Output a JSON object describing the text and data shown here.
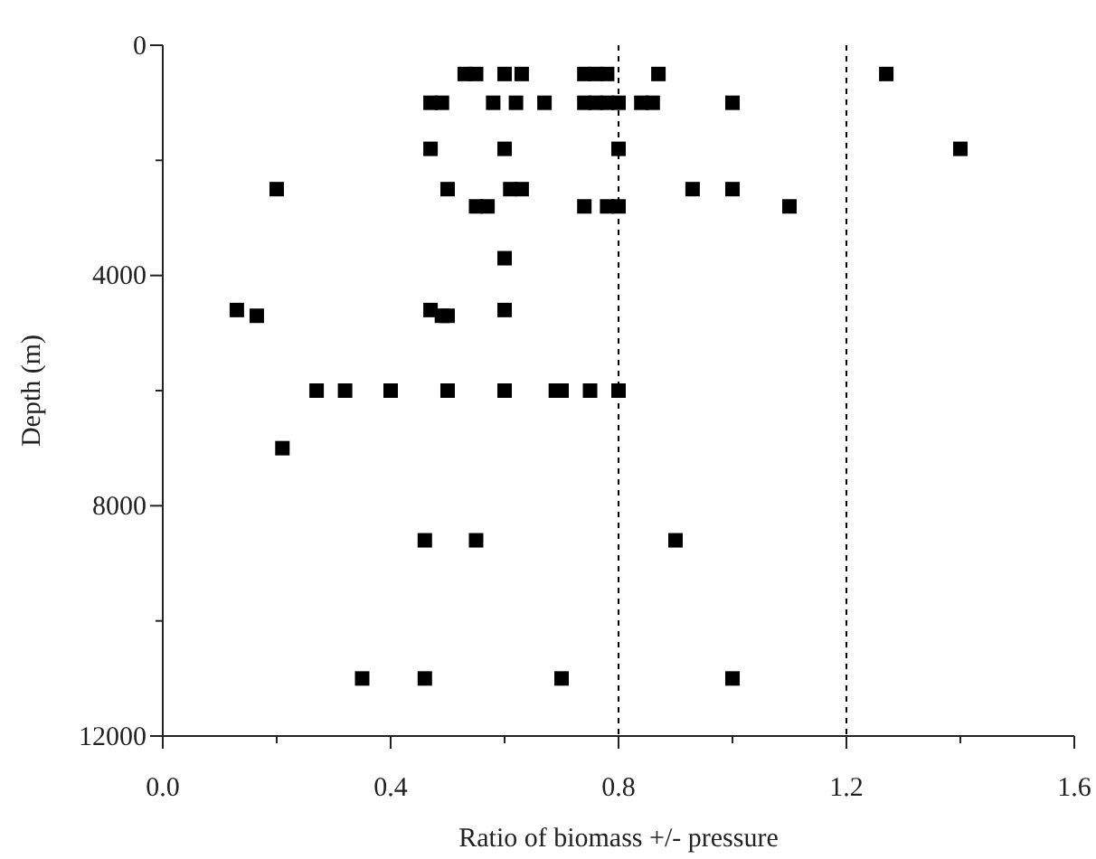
{
  "chart_data": {
    "type": "scatter",
    "xlabel": "Ratio of biomass +/- pressure",
    "ylabel": "Depth (m)",
    "marker": "square",
    "grid": false,
    "xlim": [
      0,
      1.6
    ],
    "xticks": [
      {
        "value": 0,
        "label": "0.0"
      },
      {
        "value": 0.2,
        "label": null
      },
      {
        "value": 0.4,
        "label": "0.4"
      },
      {
        "value": 0.6,
        "label": null
      },
      {
        "value": 0.8,
        "label": "0.8"
      },
      {
        "value": 1.0,
        "label": null
      },
      {
        "value": 1.2,
        "label": "1.2"
      },
      {
        "value": 1.4,
        "label": null
      },
      {
        "value": 1.6,
        "label": "1.6"
      }
    ],
    "ylim": [
      12000,
      0
    ],
    "yticks": [
      0,
      {
        "value": 2000,
        "label": null
      },
      4000,
      {
        "value": 6000,
        "label": null
      },
      8000,
      {
        "value": 10000,
        "label": null
      },
      12000
    ],
    "ref_lines": [
      {
        "axis": "x",
        "value": 0.8,
        "line_style": "dashed"
      },
      {
        "axis": "x",
        "value": 1.2,
        "line_style": "dashed"
      }
    ],
    "series": [
      {
        "color": "#000000",
        "x": [
          0.53,
          0.55,
          0.6,
          0.63,
          0.74,
          0.76,
          0.78,
          0.87,
          1.27,
          0.47,
          0.49,
          0.58,
          0.62,
          0.67,
          0.74,
          0.76,
          0.78,
          0.8,
          0.84,
          0.86,
          1.0,
          0.47,
          0.6,
          0.8,
          1.4,
          0.2,
          0.5,
          0.61,
          0.63,
          0.93,
          1.0,
          0.55,
          0.57,
          0.74,
          0.78,
          0.8,
          1.1,
          0.6,
          0.13,
          0.47,
          0.6,
          0.165,
          0.49,
          0.5,
          0.27,
          0.32,
          0.4,
          0.5,
          0.6,
          0.69,
          0.7,
          0.75,
          0.8,
          0.21,
          0.46,
          0.55,
          0.9,
          0.35,
          0.46,
          0.7,
          1.0
        ],
        "values": [
          500,
          500,
          500,
          500,
          500,
          500,
          500,
          500,
          500,
          1000,
          1000,
          1000,
          1000,
          1000,
          1000,
          1000,
          1000,
          1000,
          1000,
          1000,
          1000,
          1800,
          1800,
          1800,
          1800,
          2500,
          2500,
          2500,
          2500,
          2500,
          2500,
          2800,
          2800,
          2800,
          2800,
          2800,
          2800,
          3700,
          4600,
          4600,
          4600,
          4700,
          4700,
          4700,
          6000,
          6000,
          6000,
          6000,
          6000,
          6000,
          6000,
          6000,
          6000,
          7000,
          8600,
          8600,
          8600,
          11000,
          11000,
          11000,
          11000
        ]
      }
    ]
  }
}
